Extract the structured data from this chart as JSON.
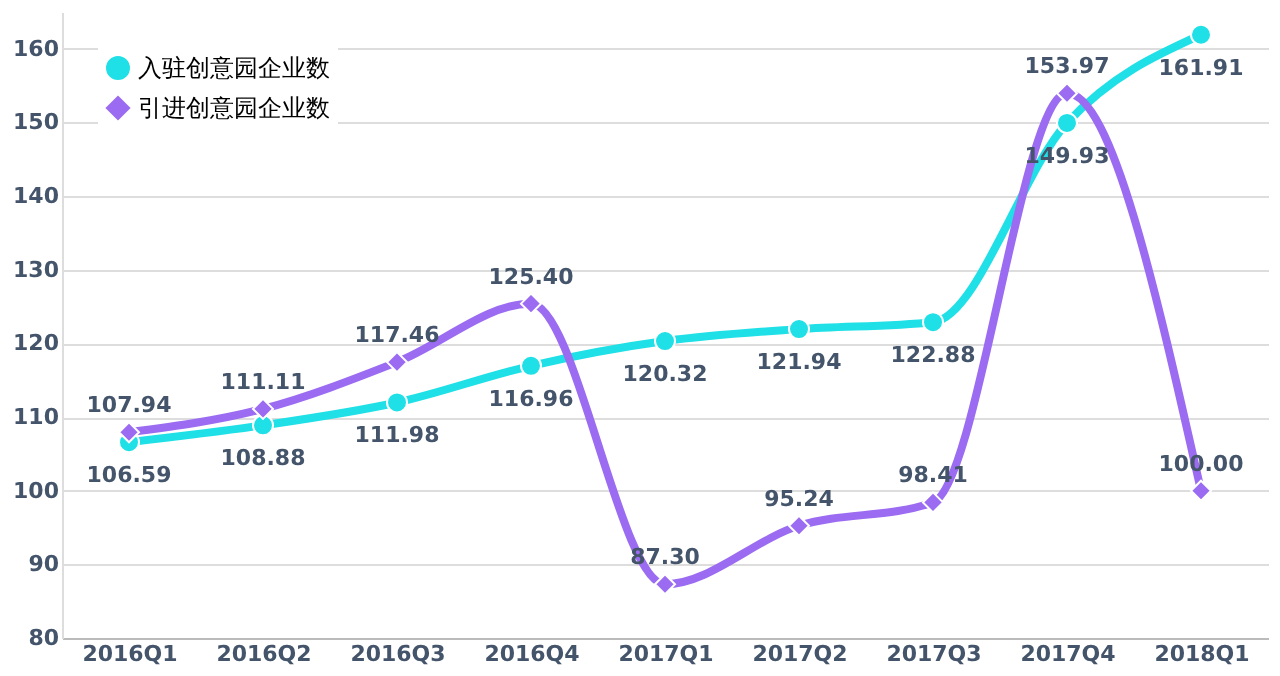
{
  "chart_data": {
    "type": "line",
    "categories": [
      "2016Q1",
      "2016Q2",
      "2016Q3",
      "2016Q4",
      "2017Q1",
      "2017Q2",
      "2017Q3",
      "2017Q4",
      "2018Q1"
    ],
    "series": [
      {
        "name": "入驻创意园企业数",
        "color": "#1fe0e6",
        "marker": "circle",
        "values": [
          106.59,
          108.88,
          111.98,
          116.96,
          120.32,
          121.94,
          122.88,
          149.93,
          161.91
        ],
        "value_labels": [
          "106.59",
          "108.88",
          "111.98",
          "116.96",
          "120.32",
          "121.94",
          "122.88",
          "149.93",
          "161.91"
        ]
      },
      {
        "name": "引进创意园企业数",
        "color": "#9b6cf2",
        "marker": "diamond",
        "values": [
          107.94,
          111.11,
          117.46,
          125.4,
          87.3,
          95.24,
          98.41,
          153.97,
          100.0
        ],
        "value_labels": [
          "107.94",
          "111.11",
          "117.46",
          "125.40",
          "87.30",
          "95.24",
          "98.41",
          "153.97",
          "100.00"
        ]
      }
    ],
    "ylim": [
      80,
      165
    ],
    "yticks": [
      80,
      90,
      100,
      110,
      120,
      130,
      140,
      150,
      160
    ],
    "grid": "y",
    "legend": "top left"
  }
}
